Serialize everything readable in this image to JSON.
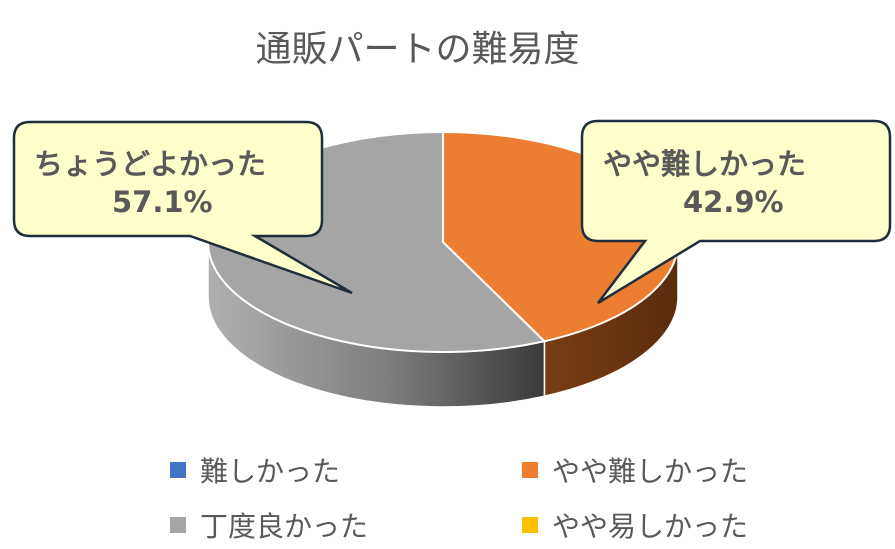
{
  "chart_data": {
    "type": "pie",
    "title": "通販パートの難易度",
    "categories": [
      "難しかった",
      "やや難しかった",
      "丁度良かった",
      "やや易しかった"
    ],
    "values": [
      0,
      42.9,
      57.1,
      0
    ],
    "unit": "%",
    "colors": [
      "#4472C4",
      "#ED7D31",
      "#A5A5A5",
      "#FFC000"
    ],
    "data_labels": [
      {
        "category": "ちょうどよかった",
        "value_label": "57.1%"
      },
      {
        "category": "やや難しかった",
        "value_label": "42.9%"
      }
    ],
    "style": "3d",
    "legend_position": "bottom"
  },
  "colors": {
    "callout_fill": "#FFFFCC",
    "callout_border": "#1F2E3C",
    "text": "#595959"
  }
}
